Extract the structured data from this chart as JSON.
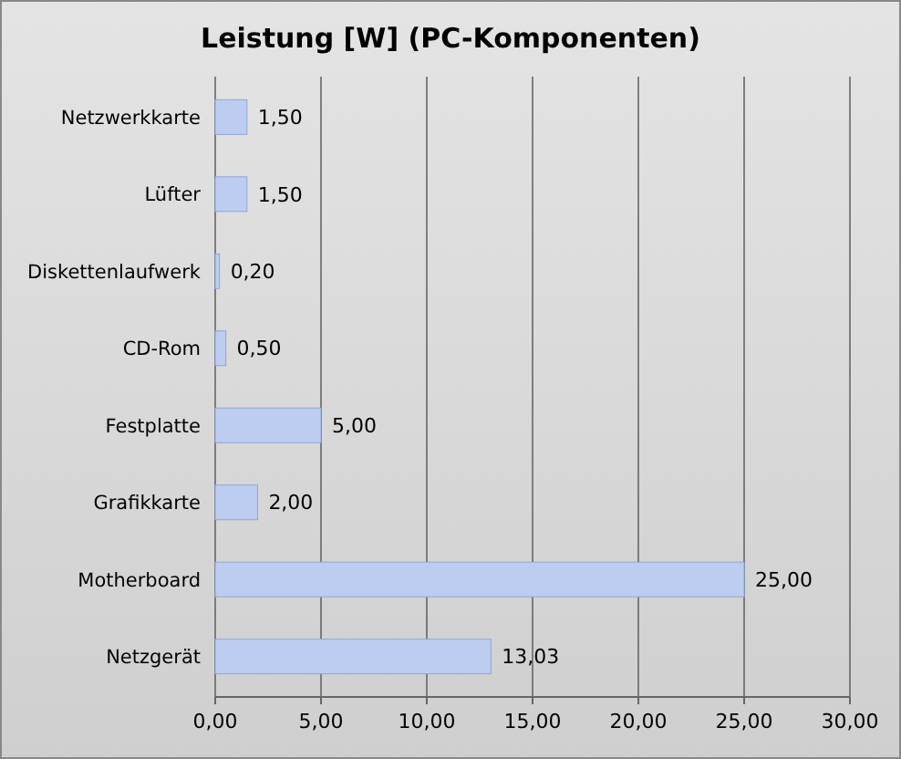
{
  "chart_data": {
    "type": "bar",
    "orientation": "horizontal",
    "title": "Leistung [W] (PC-Komponenten)",
    "categories": [
      "Netzwerkkarte",
      "Lüfter",
      "Diskettenlaufwerk",
      "CD-Rom",
      "Festplatte",
      "Grafikkarte",
      "Motherboard",
      "Netzgerät"
    ],
    "values": [
      1.5,
      1.5,
      0.2,
      0.5,
      5,
      2,
      25,
      13.03
    ],
    "value_labels": [
      "1,50",
      "1,50",
      "0,20",
      "0,50",
      "5,00",
      "2,00",
      "25,00",
      "13,03"
    ],
    "color": "#bccdf0",
    "xlim": [
      0,
      30
    ],
    "xticks": [
      {
        "value": 0,
        "label": "0,00"
      },
      {
        "value": 5,
        "label": "5,00"
      },
      {
        "value": 10,
        "label": "10,00"
      },
      {
        "value": 15,
        "label": "15,00"
      },
      {
        "value": 20,
        "label": "20,00"
      },
      {
        "value": 25,
        "label": "25,00"
      },
      {
        "value": 30,
        "label": "30,00"
      }
    ],
    "grid": "x"
  }
}
